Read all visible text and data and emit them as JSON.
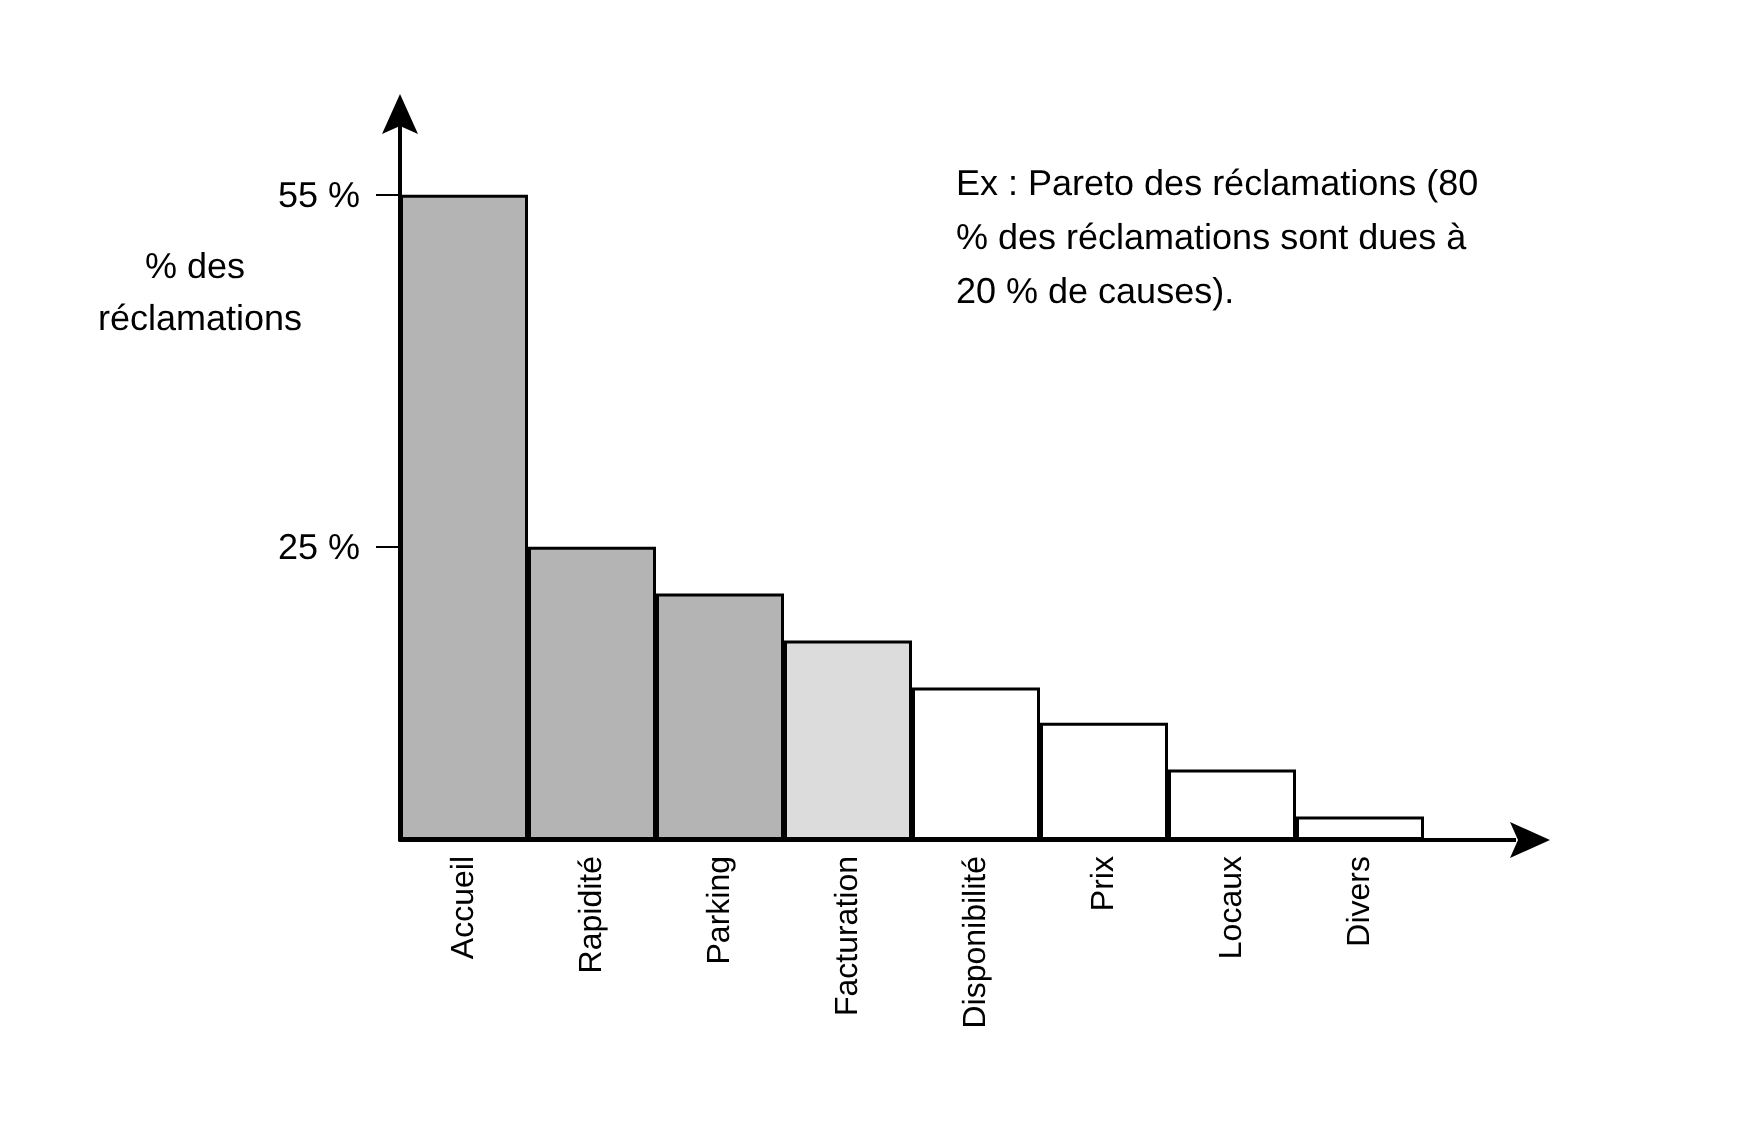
{
  "chart_data": {
    "type": "bar",
    "ylabel": "% des réclamations",
    "categories": [
      "Accueil",
      "Rapidité",
      "Parking",
      "Facturation",
      "Disponibilité",
      "Prix",
      "Locaux",
      "Divers"
    ],
    "values": [
      55,
      25,
      21,
      17,
      13,
      10,
      6,
      2
    ],
    "colors": [
      "#b4b4b4",
      "#b4b4b4",
      "#b4b4b4",
      "#dcdcdc",
      "#ffffff",
      "#ffffff",
      "#ffffff",
      "#ffffff"
    ],
    "ylim": [
      0,
      60
    ],
    "yticks": [
      {
        "value": 25,
        "label": "25 %"
      },
      {
        "value": 55,
        "label": "55 %"
      }
    ],
    "annotations": [
      "Ex : Pareto des réclamations (80 % des réclamations sont dues à 20 % de causes)."
    ],
    "grid": false
  }
}
